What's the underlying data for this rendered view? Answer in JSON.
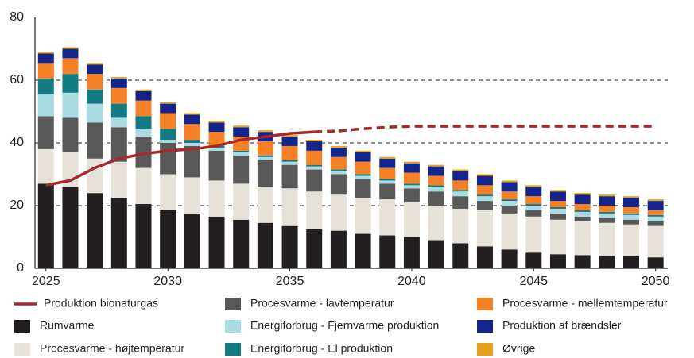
{
  "chart_data": {
    "type": "bar",
    "stacked": true,
    "x": [
      2025,
      2026,
      2027,
      2028,
      2029,
      2030,
      2031,
      2032,
      2033,
      2034,
      2035,
      2036,
      2037,
      2038,
      2039,
      2040,
      2041,
      2042,
      2043,
      2044,
      2045,
      2046,
      2047,
      2048,
      2049,
      2050
    ],
    "xlim": [
      2024.55,
      2050.5
    ],
    "xticks": [
      2025,
      2030,
      2035,
      2040,
      2045,
      2050
    ],
    "ylim": [
      0,
      80
    ],
    "yticks": [
      0,
      20,
      40,
      60,
      80
    ],
    "grid": true,
    "series": [
      {
        "name": "Rumvarme",
        "color": "#231f20",
        "values": [
          27,
          26,
          24,
          22.5,
          20.5,
          18.5,
          17.5,
          16.5,
          15.5,
          14.5,
          13.5,
          12.5,
          12,
          11,
          10.5,
          10,
          9,
          8,
          7,
          6,
          5,
          4.5,
          4.2,
          4,
          3.8,
          3.5
        ]
      },
      {
        "name": "Procesvarme - højtemperatur",
        "color": "#e6e2da",
        "values": [
          11,
          11,
          11,
          11.5,
          11.5,
          11.5,
          11.5,
          11.5,
          11.5,
          11.5,
          12,
          12,
          11.5,
          11.5,
          11.5,
          11,
          11,
          11,
          11.5,
          11.5,
          11.5,
          11,
          10.8,
          10.5,
          10.2,
          10
        ]
      },
      {
        "name": "Procesvarme - lavtemperatur",
        "color": "#595959",
        "values": [
          10.5,
          11,
          11.5,
          11,
          10,
          10,
          10,
          9.5,
          9,
          8.5,
          7.5,
          7,
          6.5,
          6,
          5,
          4.5,
          4.5,
          4,
          3,
          2.5,
          2,
          2,
          1.5,
          1.5,
          1.5,
          1.5
        ]
      },
      {
        "name": "Energiforbrug - Fjernvarme produktion",
        "color": "#a9dbe2",
        "values": [
          7,
          8,
          6,
          3,
          2.5,
          1,
          1,
          1,
          1,
          1,
          1,
          1,
          1,
          1,
          1,
          1,
          1.5,
          1.5,
          1.5,
          1.5,
          1.5,
          1.5,
          1.5,
          1.5,
          1.5,
          1.5
        ]
      },
      {
        "name": "Energiforbrug - El produktion",
        "color": "#127b83",
        "values": [
          5,
          6,
          4.5,
          4.5,
          4,
          3.5,
          1,
          0.5,
          0.5,
          0.5,
          0.5,
          0.5,
          0.5,
          0.5,
          0.5,
          0.5,
          0.5,
          0.5,
          0.5,
          0.5,
          0.5,
          0.5,
          0.5,
          0.5,
          0.5,
          0.5
        ]
      },
      {
        "name": "Procesvarme - mellemtemperatur",
        "color": "#f58025",
        "values": [
          5,
          5,
          5,
          5,
          5,
          5,
          5,
          4.5,
          4.5,
          4.5,
          4.5,
          4.5,
          4,
          4,
          3.5,
          3.5,
          3,
          3,
          3,
          2.5,
          2.5,
          2,
          2,
          2,
          2,
          1.5
        ]
      },
      {
        "name": "Produktion af brændsler",
        "color": "#13258c",
        "values": [
          3,
          3,
          3,
          3,
          3,
          3,
          3,
          3,
          3,
          3,
          3,
          3,
          3,
          3,
          3,
          3,
          3,
          3,
          3,
          3,
          3,
          3,
          3,
          3,
          3,
          3
        ]
      },
      {
        "name": "Øvrige",
        "color": "#e8a418",
        "values": [
          0.5,
          0.5,
          0.5,
          0.5,
          0.5,
          0.5,
          0.5,
          0.5,
          0.5,
          0.5,
          0.5,
          0.5,
          0.5,
          0.5,
          0.5,
          0.5,
          0.5,
          0.5,
          0.5,
          0.5,
          0.5,
          0.5,
          0.5,
          0.5,
          0.5,
          0.5
        ]
      }
    ],
    "lines": [
      {
        "name": "Produktion bionaturgas",
        "color": "#a52a2a",
        "dashed_from": 2036,
        "values": [
          26.5,
          28,
          32,
          35,
          36.5,
          37.5,
          38,
          39,
          41,
          42,
          43,
          43.5,
          43.8,
          44.5,
          45,
          45.3,
          45.3,
          45.3,
          45.3,
          45.3,
          45.3,
          45.3,
          45.3,
          45.3,
          45.3,
          45.3
        ]
      }
    ]
  }
}
